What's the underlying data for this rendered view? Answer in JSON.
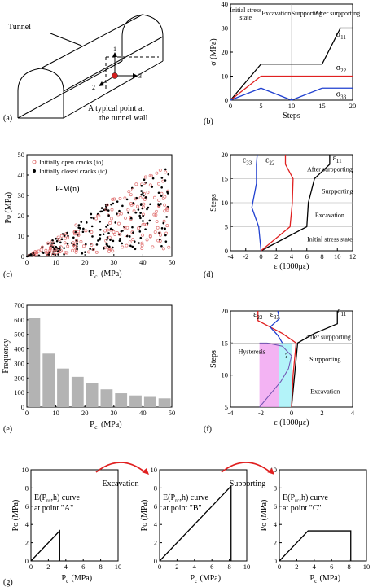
{
  "panel_labels": [
    "(a)",
    "(b)",
    "(c)",
    "(d)",
    "(e)",
    "(f)",
    "(g)"
  ],
  "colors": {
    "red": "#e02020",
    "blue": "#2040d0",
    "black": "#000000",
    "gray": "#b3b3b3",
    "pink": "#f0a0f0",
    "cyan": "#a0f0f8",
    "purple": "#7050b0"
  },
  "panel_a": {
    "tunnel_label": "Tunnel",
    "point_label_line1": "A typical point at",
    "point_label_line2": "the tunnel wall",
    "axis_1": "1",
    "axis_2": "2",
    "axis_3": "3"
  },
  "chart_data": [
    {
      "id": "b",
      "type": "line",
      "xlabel": "Steps",
      "ylabel": "σ (MPa)",
      "xlim": [
        0,
        20
      ],
      "ylim": [
        0,
        40
      ],
      "xticks": [
        "0",
        "5",
        "10",
        "15",
        "20"
      ],
      "yticks": [
        "0",
        "10",
        "20",
        "30",
        "40"
      ],
      "stages": [
        "Initial stress state",
        "Excavation",
        "Surpporting",
        "After surpporting"
      ],
      "series": [
        {
          "name": "σ11",
          "color": "#000000",
          "x": [
            0,
            5,
            15,
            18,
            20
          ],
          "y": [
            0,
            15,
            15,
            30,
            30
          ]
        },
        {
          "name": "σ22",
          "color": "#e02020",
          "x": [
            0,
            5,
            20
          ],
          "y": [
            0,
            10,
            10
          ]
        },
        {
          "name": "σ33",
          "color": "#2040d0",
          "x": [
            0,
            5,
            10,
            15,
            20
          ],
          "y": [
            0,
            5,
            0,
            5,
            5
          ]
        }
      ]
    },
    {
      "id": "c",
      "type": "scatter",
      "xlabel": "Pc (MPa)",
      "ylabel": "Po (MPa)",
      "xlim": [
        0,
        50
      ],
      "ylim": [
        0,
        50
      ],
      "xticks": [
        "0",
        "10",
        "20",
        "30",
        "40",
        "50"
      ],
      "yticks": [
        "0",
        "10",
        "20",
        "30",
        "40",
        "50"
      ],
      "legend": [
        "Initially open cracks (io)",
        "Initially closed cracks (ic)"
      ],
      "annotation": "P-M(n)"
    },
    {
      "id": "d",
      "type": "line",
      "xlabel": "ε (1000με)",
      "ylabel": "Steps",
      "xlim": [
        -4,
        12
      ],
      "ylim": [
        0,
        20
      ],
      "xticks": [
        "-4",
        "-2",
        "0",
        "2",
        "4",
        "6",
        "8",
        "10",
        "12"
      ],
      "yticks": [
        "0",
        "5",
        "10",
        "15",
        "20"
      ],
      "stages": [
        "Initial stress state",
        "Excavation",
        "Surpporting",
        "After surpporting"
      ],
      "series": [
        {
          "name": "ε11",
          "color": "#000000",
          "x": [
            0,
            6,
            6.2,
            7,
            9,
            9
          ],
          "y": [
            0,
            5,
            10,
            15,
            18,
            20
          ]
        },
        {
          "name": "ε22",
          "color": "#e02020",
          "x": [
            0,
            3.8,
            4.1,
            4.2,
            3.2,
            3.2
          ],
          "y": [
            0,
            5,
            10,
            15,
            18,
            20
          ]
        },
        {
          "name": "ε33",
          "color": "#2040d0",
          "x": [
            0,
            -0.3,
            -1.2,
            -0.6,
            -0.6,
            -0.5
          ],
          "y": [
            0,
            5,
            9,
            14,
            18,
            20
          ]
        }
      ]
    },
    {
      "id": "e",
      "type": "bar",
      "xlabel": "Pc (MPa)",
      "ylabel": "Frequency",
      "xlim": [
        0,
        50
      ],
      "ylim": [
        0,
        700
      ],
      "xticks": [
        "0",
        "10",
        "20",
        "30",
        "40",
        "50"
      ],
      "yticks": [
        "0",
        "100",
        "200",
        "300",
        "400",
        "500",
        "600",
        "700"
      ],
      "bin_edges": [
        0,
        5,
        10,
        15,
        20,
        25,
        30,
        35,
        40,
        45,
        50
      ],
      "values": [
        612,
        368,
        265,
        208,
        165,
        122,
        95,
        80,
        70,
        60
      ]
    },
    {
      "id": "f",
      "type": "line",
      "xlabel": "ε (1000με)",
      "ylabel": "Steps",
      "xlim": [
        -4,
        4
      ],
      "ylim": [
        5,
        20
      ],
      "xticks": [
        "-4",
        "-2",
        "0",
        "2",
        "4"
      ],
      "yticks": [
        "5",
        "10",
        "15",
        "20"
      ],
      "stages": [
        "Excavation",
        "Surpporting",
        "After surpporting"
      ],
      "annotations": [
        "Hysteresis",
        "?"
      ],
      "series": [
        {
          "name": "ε11",
          "color": "#000000",
          "x": [
            0,
            0.2,
            0.4,
            1.5,
            3,
            3
          ],
          "y": [
            5,
            10,
            15,
            16.5,
            18,
            20
          ]
        },
        {
          "name": "ε22",
          "color": "#e02020",
          "x": [
            0,
            0.1,
            0.3,
            -0.6,
            -2.2,
            -2.2
          ],
          "y": [
            5,
            10,
            15,
            16.5,
            18.5,
            20
          ]
        },
        {
          "name": "ε33",
          "color": "#2040d0",
          "x": [
            -0.6,
            -0.9,
            -1.4,
            -0.8,
            -0.9
          ],
          "y": [
            15,
            16.2,
            17.5,
            18.8,
            20
          ]
        },
        {
          "name": "hysteresis",
          "color": "#7050b0",
          "x": [
            -2.1,
            -1.4,
            -0.7,
            -0.2,
            0,
            -0.6,
            -1.6,
            -2.1
          ],
          "y": [
            5,
            7,
            9,
            11,
            13,
            14.5,
            15,
            15
          ]
        }
      ]
    }
  ],
  "panel_g": {
    "xlabel": "Pc (MPa)",
    "ylabel": "Po (MPa)",
    "ticks": [
      "0",
      "2",
      "4",
      "6",
      "8",
      "10"
    ],
    "curve_label": "E(Prc,h) curve",
    "arrow_1": "Excavation",
    "arrow_2": "Supporting",
    "subplots": [
      {
        "point": "at point \"A\"",
        "x": [
          0,
          3.3,
          3.3
        ],
        "y": [
          0,
          3.3,
          0
        ]
      },
      {
        "point": "at point \"B\"",
        "x": [
          0,
          8.2,
          8.2
        ],
        "y": [
          0,
          8.2,
          0
        ]
      },
      {
        "point": "at point \"C\"",
        "x": [
          0,
          3.3,
          8.2,
          8.2
        ],
        "y": [
          0,
          3.3,
          3.3,
          0
        ]
      }
    ]
  }
}
